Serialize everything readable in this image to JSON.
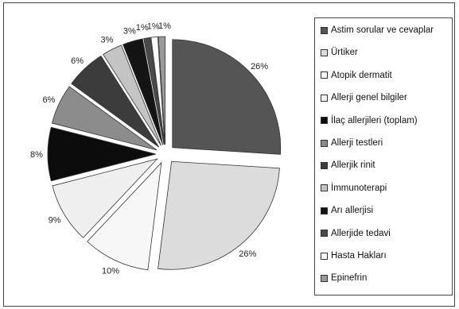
{
  "chart_data": {
    "type": "pie",
    "title": "",
    "legend_position": "right",
    "slices": [
      {
        "label": "Astim sorular ve cevaplar",
        "value": 26,
        "value_label": "26%",
        "color": "#555555",
        "exploded": true
      },
      {
        "label": "Ürtiker",
        "value": 26,
        "value_label": "26%",
        "color": "#dcdcdc",
        "exploded": true
      },
      {
        "label": "Atopik dermatit",
        "value": 10,
        "value_label": "10%",
        "color": "#f7f7f7",
        "exploded": true
      },
      {
        "label": "Allerji genel bilgiler",
        "value": 9,
        "value_label": "9%",
        "color": "#efefef",
        "exploded": true
      },
      {
        "label": "İlaç allerjileri (toplam)",
        "value": 8,
        "value_label": "8%",
        "color": "#0c0c0c",
        "exploded": true
      },
      {
        "label": "Allerji testleri",
        "value": 6,
        "value_label": "6%",
        "color": "#8c8c8c",
        "exploded": true
      },
      {
        "label": "Allerjik rinit",
        "value": 6,
        "value_label": "6%",
        "color": "#3c3c3c",
        "exploded": true
      },
      {
        "label": "İmmunoterapi",
        "value": 3,
        "value_label": "3%",
        "color": "#c4c4c4",
        "exploded": true
      },
      {
        "label": "Arı allerjisi",
        "value": 3,
        "value_label": "3%",
        "color": "#141414",
        "exploded": true
      },
      {
        "label": "Allerjide tedavi",
        "value": 1,
        "value_label": "1%",
        "color": "#4a4a4a",
        "exploded": true
      },
      {
        "label": "Hasta Hakları",
        "value": 1,
        "value_label": "1%",
        "color": "#fafafa",
        "exploded": true
      },
      {
        "label": "Epinefrin",
        "value": 1,
        "value_label": "1%",
        "color": "#9a9a9a",
        "exploded": true
      }
    ]
  }
}
